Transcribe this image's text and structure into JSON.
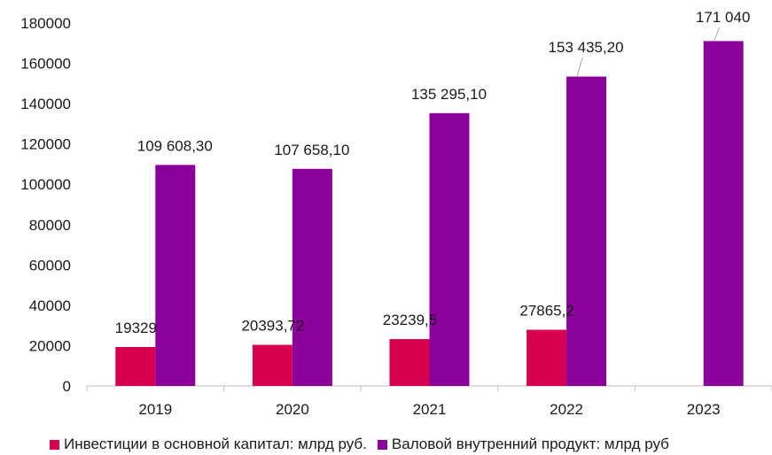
{
  "chart_data": {
    "type": "bar",
    "categories": [
      "2019",
      "2020",
      "2021",
      "2022",
      "2023"
    ],
    "series": [
      {
        "name": "Инвестиции в основной капитал: млрд руб.",
        "color": "#d6004f",
        "values": [
          19329,
          20393.72,
          23239.5,
          27865.2,
          null
        ],
        "labels": [
          "19329",
          "20393,72",
          "23239,5",
          "27865,2",
          ""
        ]
      },
      {
        "name": "Валовой внутренний продукт: млрд руб",
        "color": "#8b009a",
        "values": [
          109608.3,
          107658.1,
          135295.1,
          153435.2,
          171040
        ],
        "labels": [
          "109 608,30",
          "107 658,10",
          "135 295,10",
          "153 435,20",
          "171 040"
        ]
      }
    ],
    "ylim": [
      0,
      180000
    ],
    "yticks": [
      "0",
      "20000",
      "40000",
      "60000",
      "80000",
      "100000",
      "120000",
      "140000",
      "160000",
      "180000"
    ],
    "grid": false,
    "legend_position": "bottom"
  }
}
